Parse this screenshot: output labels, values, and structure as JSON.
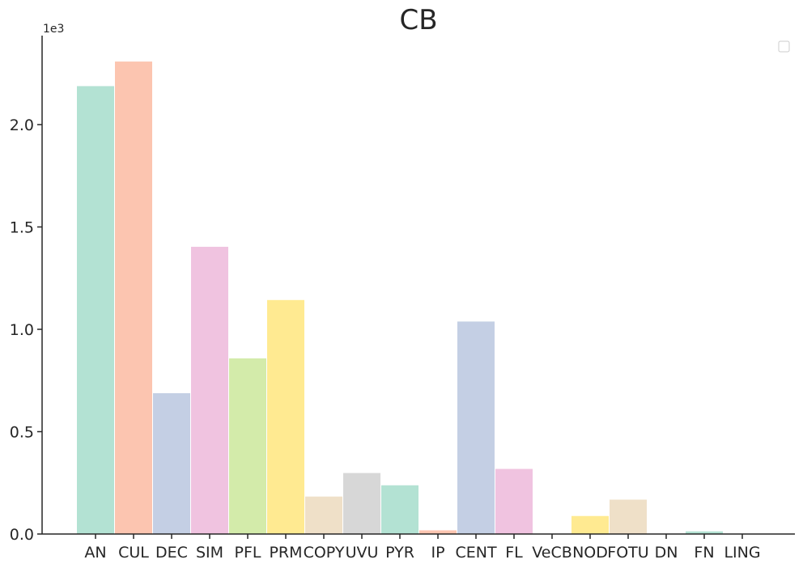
{
  "chart_data": {
    "type": "bar",
    "title": "CB",
    "xlabel": "",
    "ylabel": "",
    "y_multiplier": "1e3",
    "ylim": [
      0,
      2.42
    ],
    "yticks": [
      "0.0",
      "0.5",
      "1.0",
      "1.5",
      "2.0"
    ],
    "ytick_values": [
      0,
      0.5,
      1.0,
      1.5,
      2.0
    ],
    "categories": [
      "AN",
      "CUL",
      "DEC",
      "SIM",
      "PFL",
      "PRM",
      "COPY",
      "UVU",
      "PYR",
      "IP",
      "CENT",
      "FL",
      "VeCB",
      "NOD",
      "FOTU",
      "DN",
      "FN",
      "LING"
    ],
    "values": [
      2.19,
      2.31,
      0.69,
      1.405,
      0.86,
      1.145,
      0.185,
      0.3,
      0.24,
      0.02,
      1.04,
      0.32,
      0.0,
      0.09,
      0.17,
      0.0,
      0.015,
      0.0
    ],
    "colors": [
      "#b3e2d3",
      "#fcc5b0",
      "#c4cfe4",
      "#f0c3e0",
      "#d3ebaa",
      "#ffea91",
      "#efe0c8",
      "#d7d7d7",
      "#b3e2d3",
      "#fcc5b0",
      "#c4cfe4",
      "#f0c3e0",
      "#d3ebaa",
      "#ffea91",
      "#efe0c8",
      "#d7d7d7",
      "#b3e2d3",
      "#fcc5b0"
    ],
    "grid": false,
    "legend": "top-right (empty)"
  }
}
